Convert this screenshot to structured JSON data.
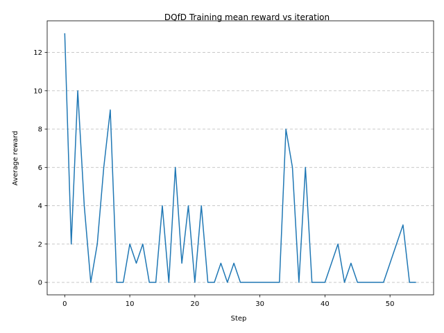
{
  "chart_data": {
    "type": "line",
    "title": "DQfD Training mean reward vs iteration",
    "xlabel": "Step",
    "ylabel": "Average reward",
    "xlim": [
      -2.7,
      56.7
    ],
    "ylim": [
      -0.65,
      13.65
    ],
    "xticks": [
      0,
      10,
      20,
      30,
      40,
      50
    ],
    "yticks": [
      0,
      2,
      4,
      6,
      8,
      10,
      12
    ],
    "grid": {
      "axis": "y",
      "style": "dashed",
      "color": "#c0c0c0"
    },
    "series": [
      {
        "color": "#1f77b4",
        "x": [
          0,
          1,
          2,
          3,
          4,
          5,
          6,
          7,
          8,
          9,
          10,
          11,
          12,
          13,
          14,
          15,
          16,
          17,
          18,
          19,
          20,
          21,
          22,
          23,
          24,
          25,
          26,
          27,
          28,
          29,
          30,
          31,
          32,
          33,
          34,
          35,
          36,
          37,
          38,
          39,
          40,
          41,
          42,
          43,
          44,
          45,
          46,
          47,
          48,
          49,
          50,
          51,
          52,
          53,
          54
        ],
        "values": [
          13,
          2,
          10,
          4,
          0,
          2,
          6,
          9,
          0,
          0,
          2,
          1,
          2,
          0,
          0,
          4,
          0,
          6,
          1,
          4,
          0,
          4,
          0,
          0,
          1,
          0,
          1,
          0,
          0,
          0,
          0,
          0,
          0,
          0,
          8,
          6,
          0,
          6,
          0,
          0,
          0,
          1,
          2,
          0,
          1,
          0,
          0,
          0,
          0,
          0,
          1,
          2,
          3,
          0,
          0
        ]
      }
    ]
  }
}
